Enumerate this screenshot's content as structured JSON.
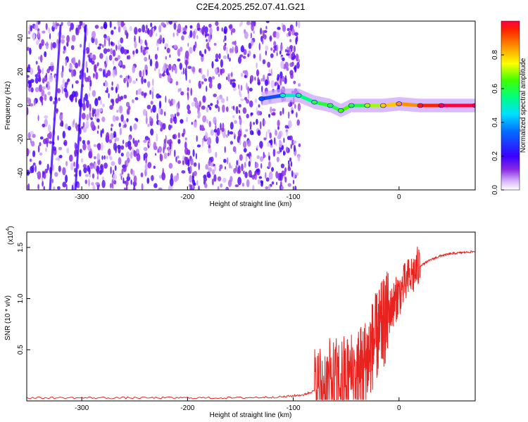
{
  "title": "C2E4.2025.252.07.41.G21",
  "chart_data": [
    {
      "type": "heatmap",
      "xlabel": "Height of straight line (km)",
      "ylabel": "Frequency (Hz)",
      "xlim": [
        -352,
        72
      ],
      "ylim": [
        -50,
        50
      ],
      "x_ticks": [
        -300,
        -200,
        -100,
        0
      ],
      "y_ticks": [
        -40,
        -20,
        0,
        20,
        40
      ],
      "colorbar": {
        "label": "Normalized spectral amplitude",
        "range": [
          0,
          1
        ],
        "ticks": [
          0.0,
          0.2,
          0.4,
          0.6,
          0.8
        ]
      },
      "ridge": [
        {
          "x": -130,
          "y": 4,
          "amp": 0.3
        },
        {
          "x": -110,
          "y": 6,
          "amp": 0.5
        },
        {
          "x": -95,
          "y": 6,
          "amp": 0.55
        },
        {
          "x": -80,
          "y": 2,
          "amp": 0.6
        },
        {
          "x": -65,
          "y": 0,
          "amp": 0.6
        },
        {
          "x": -55,
          "y": -3,
          "amp": 0.65
        },
        {
          "x": -45,
          "y": 0,
          "amp": 0.6
        },
        {
          "x": -30,
          "y": 0,
          "amp": 0.7
        },
        {
          "x": -15,
          "y": 0,
          "amp": 0.8
        },
        {
          "x": 0,
          "y": 1,
          "amp": 0.85
        },
        {
          "x": 20,
          "y": 0,
          "amp": 0.95
        },
        {
          "x": 40,
          "y": 0,
          "amp": 1.0
        },
        {
          "x": 72,
          "y": 0,
          "amp": 1.0
        }
      ],
      "colors": {
        "bg_noise": "#7a1cf0",
        "line": "#ff0000"
      }
    },
    {
      "type": "line",
      "xlabel": "Height of straight line (km)",
      "ylabel": "SNR (10 * v/v)",
      "y_multiplier": "(x10",
      "y_exponent": "4",
      "xlim": [
        -352,
        72
      ],
      "ylim": [
        0,
        1.65
      ],
      "x_ticks": [
        -300,
        -200,
        -100,
        0
      ],
      "y_ticks": [
        0.5,
        1.0,
        1.5
      ],
      "series": [
        {
          "color": "#e8231f",
          "x": [
            -352,
            -300,
            -250,
            -200,
            -150,
            -110,
            -90,
            -80,
            -70,
            -60,
            -50,
            -40,
            -35,
            -30,
            -25,
            -20,
            -15,
            -10,
            -5,
            0,
            10,
            20,
            30,
            40,
            50,
            60,
            72
          ],
          "y": [
            0.03,
            0.03,
            0.03,
            0.03,
            0.03,
            0.04,
            0.06,
            0.1,
            0.15,
            0.18,
            0.22,
            0.28,
            0.32,
            0.4,
            0.55,
            0.65,
            0.75,
            0.85,
            0.95,
            1.05,
            1.2,
            1.32,
            1.38,
            1.42,
            1.44,
            1.45,
            1.46
          ]
        }
      ]
    }
  ]
}
